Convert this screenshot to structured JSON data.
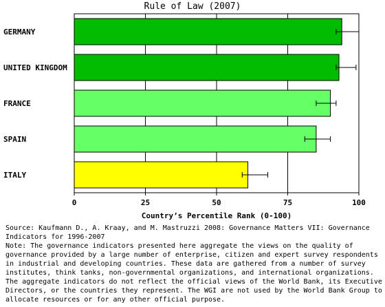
{
  "chart_data": {
    "type": "bar",
    "orientation": "horizontal",
    "title": "Rule of Law (2007)",
    "xlabel": "Country’s Percentile Rank (0-100)",
    "ylabel": "",
    "xlim": [
      0,
      100
    ],
    "xticks": [
      "0",
      "25",
      "50",
      "75",
      "100"
    ],
    "grid": true,
    "categories": [
      "GERMANY",
      "UNITED KINGDOM",
      "FRANCE",
      "SPAIN",
      "ITALY"
    ],
    "values": [
      94,
      93,
      90,
      85,
      61
    ],
    "error_low": [
      92,
      92,
      85,
      81,
      59
    ],
    "error_high": [
      100,
      99,
      92,
      90,
      68
    ],
    "bar_colors": [
      "#00bb00",
      "#00bb00",
      "#66ff66",
      "#66ff66",
      "#ffff00"
    ]
  },
  "source_text": "Source: Kaufmann D., A. Kraay, and M. Mastruzzi 2008: Governance Matters VII: Governance Indicators for 1996-2007",
  "note_text": "Note: The governance indicators presented here aggregate the views on the quality of governance provided by a large number of enterprise, citizen and expert survey respondents in industrial and developing countries. These data are gathered from a number of survey institutes, think tanks, non-governmental organizations, and international organizations. The aggregate indicators do not reflect the official views of the World Bank, its Executive Directors, or the countries they represent. The WGI are not used by the World Bank Group to allocate resources or for any other official purpose."
}
